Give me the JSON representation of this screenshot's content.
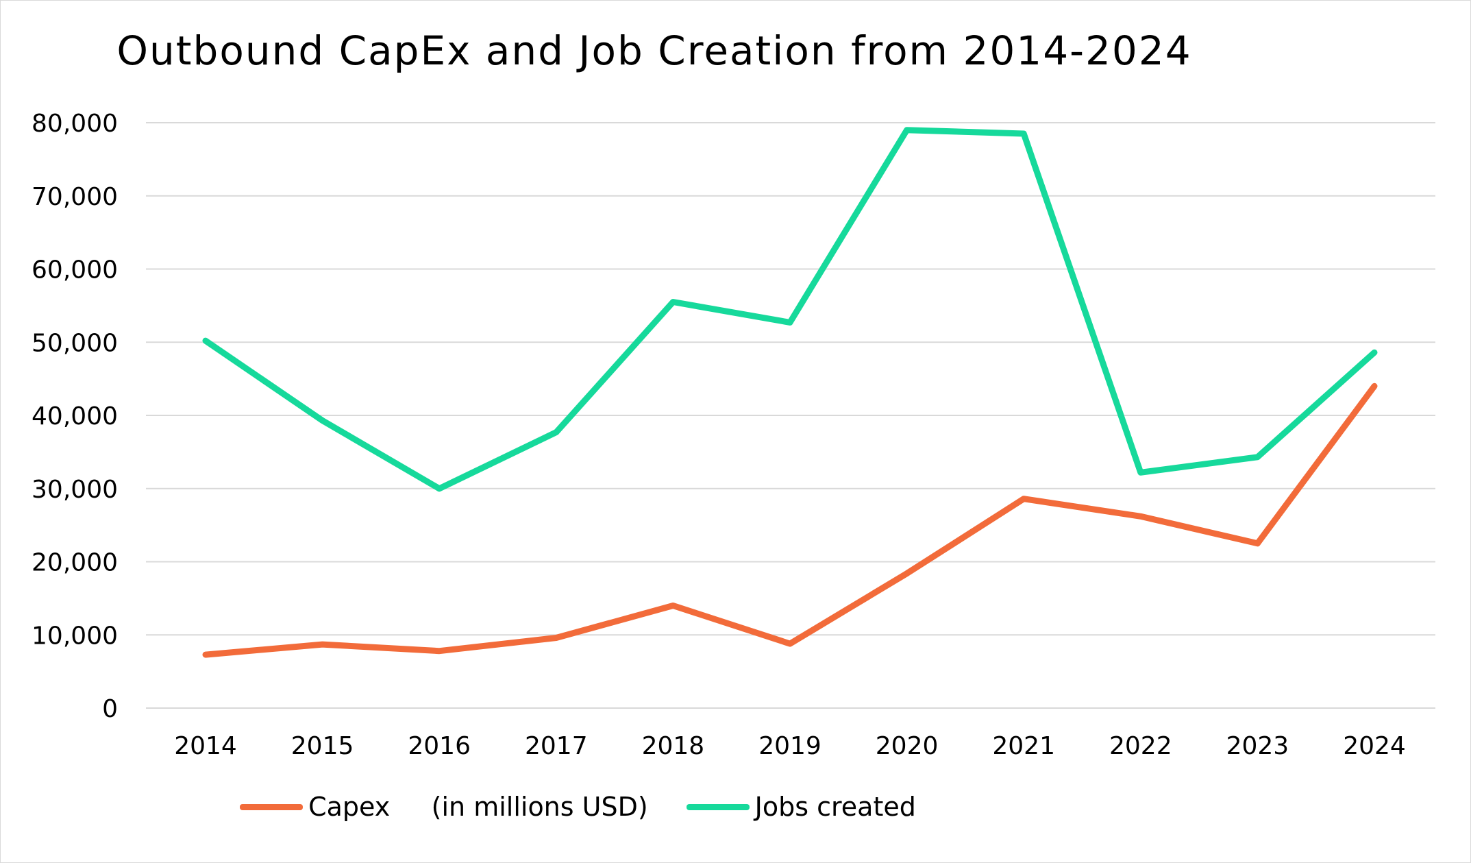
{
  "chart_data": {
    "type": "line",
    "title": "Outbound CapEx and Job Creation from 2014-2024",
    "xlabel": "",
    "ylabel": "",
    "categories": [
      "2014",
      "2015",
      "2016",
      "2017",
      "2018",
      "2019",
      "2020",
      "2021",
      "2022",
      "2023",
      "2024"
    ],
    "ylim": [
      0,
      80000
    ],
    "yticks": [
      0,
      10000,
      20000,
      30000,
      40000,
      50000,
      60000,
      70000,
      80000
    ],
    "ytick_labels": [
      "0",
      "10,000",
      "20,000",
      "30,000",
      "40,000",
      "50,000",
      "60,000",
      "70,000",
      "80,000"
    ],
    "grid": true,
    "legend_position": "bottom",
    "series": [
      {
        "name": "Capex     (in millions USD)",
        "color": "#f26b3a",
        "values": [
          7300,
          8700,
          7800,
          9600,
          14000,
          8800,
          18400,
          28600,
          26200,
          22500,
          44000
        ]
      },
      {
        "name": "Jobs created",
        "color": "#16d99b",
        "values": [
          50200,
          39300,
          30000,
          37700,
          55500,
          52700,
          79000,
          78500,
          32200,
          34300,
          48600
        ]
      }
    ]
  }
}
